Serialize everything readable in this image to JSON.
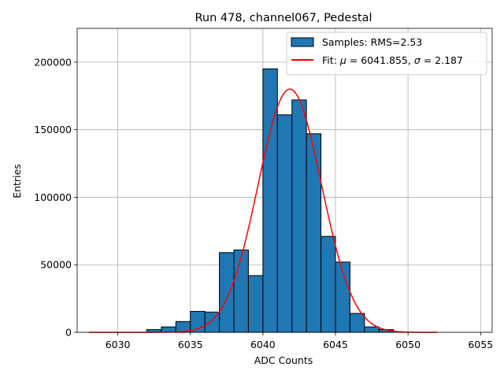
{
  "chart_data": {
    "type": "bar",
    "title": "Run 478, channel067, Pedestal",
    "xlabel": "ADC Counts",
    "ylabel": "Entries",
    "xlim": [
      6027.2,
      6055.8
    ],
    "ylim": [
      0,
      225000
    ],
    "grid": true,
    "legend_position": "top-right",
    "x_ticks": [
      6030,
      6035,
      6040,
      6045,
      6050,
      6055
    ],
    "y_ticks": [
      0,
      50000,
      100000,
      150000,
      200000
    ],
    "bin_width": 1,
    "bins": [
      {
        "x0": 6032,
        "count": 2000
      },
      {
        "x0": 6033,
        "count": 4000
      },
      {
        "x0": 6034,
        "count": 8000
      },
      {
        "x0": 6035,
        "count": 15500
      },
      {
        "x0": 6036,
        "count": 15000
      },
      {
        "x0": 6037,
        "count": 59000
      },
      {
        "x0": 6038,
        "count": 61000
      },
      {
        "x0": 6039,
        "count": 42000
      },
      {
        "x0": 6040,
        "count": 195000
      },
      {
        "x0": 6041,
        "count": 161000
      },
      {
        "x0": 6042,
        "count": 172000
      },
      {
        "x0": 6043,
        "count": 147000
      },
      {
        "x0": 6044,
        "count": 71000
      },
      {
        "x0": 6045,
        "count": 52000
      },
      {
        "x0": 6046,
        "count": 14000
      },
      {
        "x0": 6047,
        "count": 4000
      },
      {
        "x0": 6048,
        "count": 2000
      }
    ],
    "fit": {
      "mu": 6041.855,
      "sigma": 2.187,
      "amplitude": 180000,
      "x_range": [
        6028,
        6052
      ]
    },
    "series": [
      {
        "name": "Samples: RMS=2.53",
        "kind": "histogram",
        "color": "#1f77b4",
        "edgecolor": "#000000"
      },
      {
        "name_parts": [
          "Fit: ",
          "μ",
          " = 6041.855, ",
          "σ",
          " = 2.187"
        ],
        "kind": "line",
        "color": "#ff0000"
      }
    ]
  }
}
